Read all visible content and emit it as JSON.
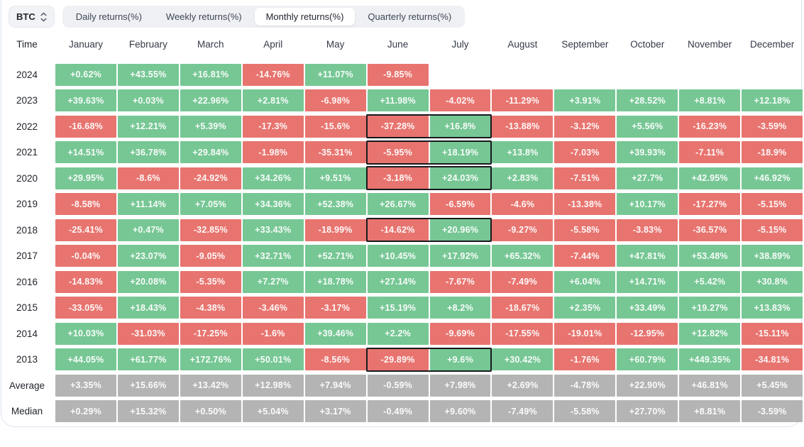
{
  "toolbar": {
    "symbol": "BTC",
    "symbol_icon": "up-down-chevron-icon",
    "tabs": [
      {
        "label": "Daily returns(%)",
        "active": false
      },
      {
        "label": "Weekly returns(%)",
        "active": false
      },
      {
        "label": "Monthly returns(%)",
        "active": true
      },
      {
        "label": "Quarterly returns(%)",
        "active": false
      }
    ]
  },
  "chart_data": {
    "type": "heatmap",
    "title": "BTC Monthly returns(%)",
    "columns": [
      "Time",
      "January",
      "February",
      "March",
      "April",
      "May",
      "June",
      "July",
      "August",
      "September",
      "October",
      "November",
      "December"
    ],
    "rows": [
      {
        "label": "2024",
        "type": "year",
        "values": [
          "+0.62%",
          "+43.55%",
          "+16.81%",
          "-14.76%",
          "+11.07%",
          "-9.85%",
          "",
          "",
          "",
          "",
          "",
          ""
        ]
      },
      {
        "label": "2023",
        "type": "year",
        "values": [
          "+39.63%",
          "+0.03%",
          "+22.96%",
          "+2.81%",
          "-6.98%",
          "+11.98%",
          "-4.02%",
          "-11.29%",
          "+3.91%",
          "+28.52%",
          "+8.81%",
          "+12.18%"
        ]
      },
      {
        "label": "2022",
        "type": "year",
        "values": [
          "-16.68%",
          "+12.21%",
          "+5.39%",
          "-17.3%",
          "-15.6%",
          "-37.28%",
          "+16.8%",
          "-13.88%",
          "-3.12%",
          "+5.56%",
          "-16.23%",
          "-3.59%"
        ]
      },
      {
        "label": "2021",
        "type": "year",
        "values": [
          "+14.51%",
          "+36.78%",
          "+29.84%",
          "-1.98%",
          "-35.31%",
          "-5.95%",
          "+18.19%",
          "+13.8%",
          "-7.03%",
          "+39.93%",
          "-7.11%",
          "-18.9%"
        ]
      },
      {
        "label": "2020",
        "type": "year",
        "values": [
          "+29.95%",
          "-8.6%",
          "-24.92%",
          "+34.26%",
          "+9.51%",
          "-3.18%",
          "+24.03%",
          "+2.83%",
          "-7.51%",
          "+27.7%",
          "+42.95%",
          "+46.92%"
        ]
      },
      {
        "label": "2019",
        "type": "year",
        "values": [
          "-8.58%",
          "+11.14%",
          "+7.05%",
          "+34.36%",
          "+52.38%",
          "+26.67%",
          "-6.59%",
          "-4.6%",
          "-13.38%",
          "+10.17%",
          "-17.27%",
          "-5.15%"
        ]
      },
      {
        "label": "2018",
        "type": "year",
        "values": [
          "-25.41%",
          "+0.47%",
          "-32.85%",
          "+33.43%",
          "-18.99%",
          "-14.62%",
          "+20.96%",
          "-9.27%",
          "-5.58%",
          "-3.83%",
          "-36.57%",
          "-5.15%"
        ]
      },
      {
        "label": "2017",
        "type": "year",
        "values": [
          "-0.04%",
          "+23.07%",
          "-9.05%",
          "+32.71%",
          "+52.71%",
          "+10.45%",
          "+17.92%",
          "+65.32%",
          "-7.44%",
          "+47.81%",
          "+53.48%",
          "+38.89%"
        ]
      },
      {
        "label": "2016",
        "type": "year",
        "values": [
          "-14.83%",
          "+20.08%",
          "-5.35%",
          "+7.27%",
          "+18.78%",
          "+27.14%",
          "-7.67%",
          "-7.49%",
          "+6.04%",
          "+14.71%",
          "+5.42%",
          "+30.8%"
        ]
      },
      {
        "label": "2015",
        "type": "year",
        "values": [
          "-33.05%",
          "+18.43%",
          "-4.38%",
          "-3.46%",
          "-3.17%",
          "+15.19%",
          "+8.2%",
          "-18.67%",
          "+2.35%",
          "+33.49%",
          "+19.27%",
          "+13.83%"
        ]
      },
      {
        "label": "2014",
        "type": "year",
        "values": [
          "+10.03%",
          "-31.03%",
          "-17.25%",
          "-1.6%",
          "+39.46%",
          "+2.2%",
          "-9.69%",
          "-17.55%",
          "-19.01%",
          "-12.95%",
          "+12.82%",
          "-15.11%"
        ]
      },
      {
        "label": "2013",
        "type": "year",
        "values": [
          "+44.05%",
          "+61.77%",
          "+172.76%",
          "+50.01%",
          "-8.56%",
          "-29.89%",
          "+9.6%",
          "+30.42%",
          "-1.76%",
          "+60.79%",
          "+449.35%",
          "-34.81%"
        ]
      },
      {
        "label": "Average",
        "type": "summary",
        "values": [
          "+3.35%",
          "+15.66%",
          "+13.42%",
          "+12.98%",
          "+7.94%",
          "-0.59%",
          "+7.98%",
          "+2.69%",
          "-4.78%",
          "+22.90%",
          "+46.81%",
          "+5.45%"
        ]
      },
      {
        "label": "Median",
        "type": "summary",
        "values": [
          "+0.29%",
          "+15.32%",
          "+0.50%",
          "+5.04%",
          "+3.17%",
          "-0.49%",
          "+9.60%",
          "-7.49%",
          "-5.58%",
          "+27.70%",
          "+8.81%",
          "-3.59%"
        ]
      }
    ],
    "highlight_june_july_rows": [
      "2022",
      "2021",
      "2020",
      "2018",
      "2013"
    ],
    "legend_position": "none",
    "grid": false,
    "colors": {
      "positive": "#76c794",
      "negative": "#e8746f",
      "summary": "#b5b4b5",
      "highlight_border": "#17191e",
      "cell_text": "#ffffff"
    }
  }
}
